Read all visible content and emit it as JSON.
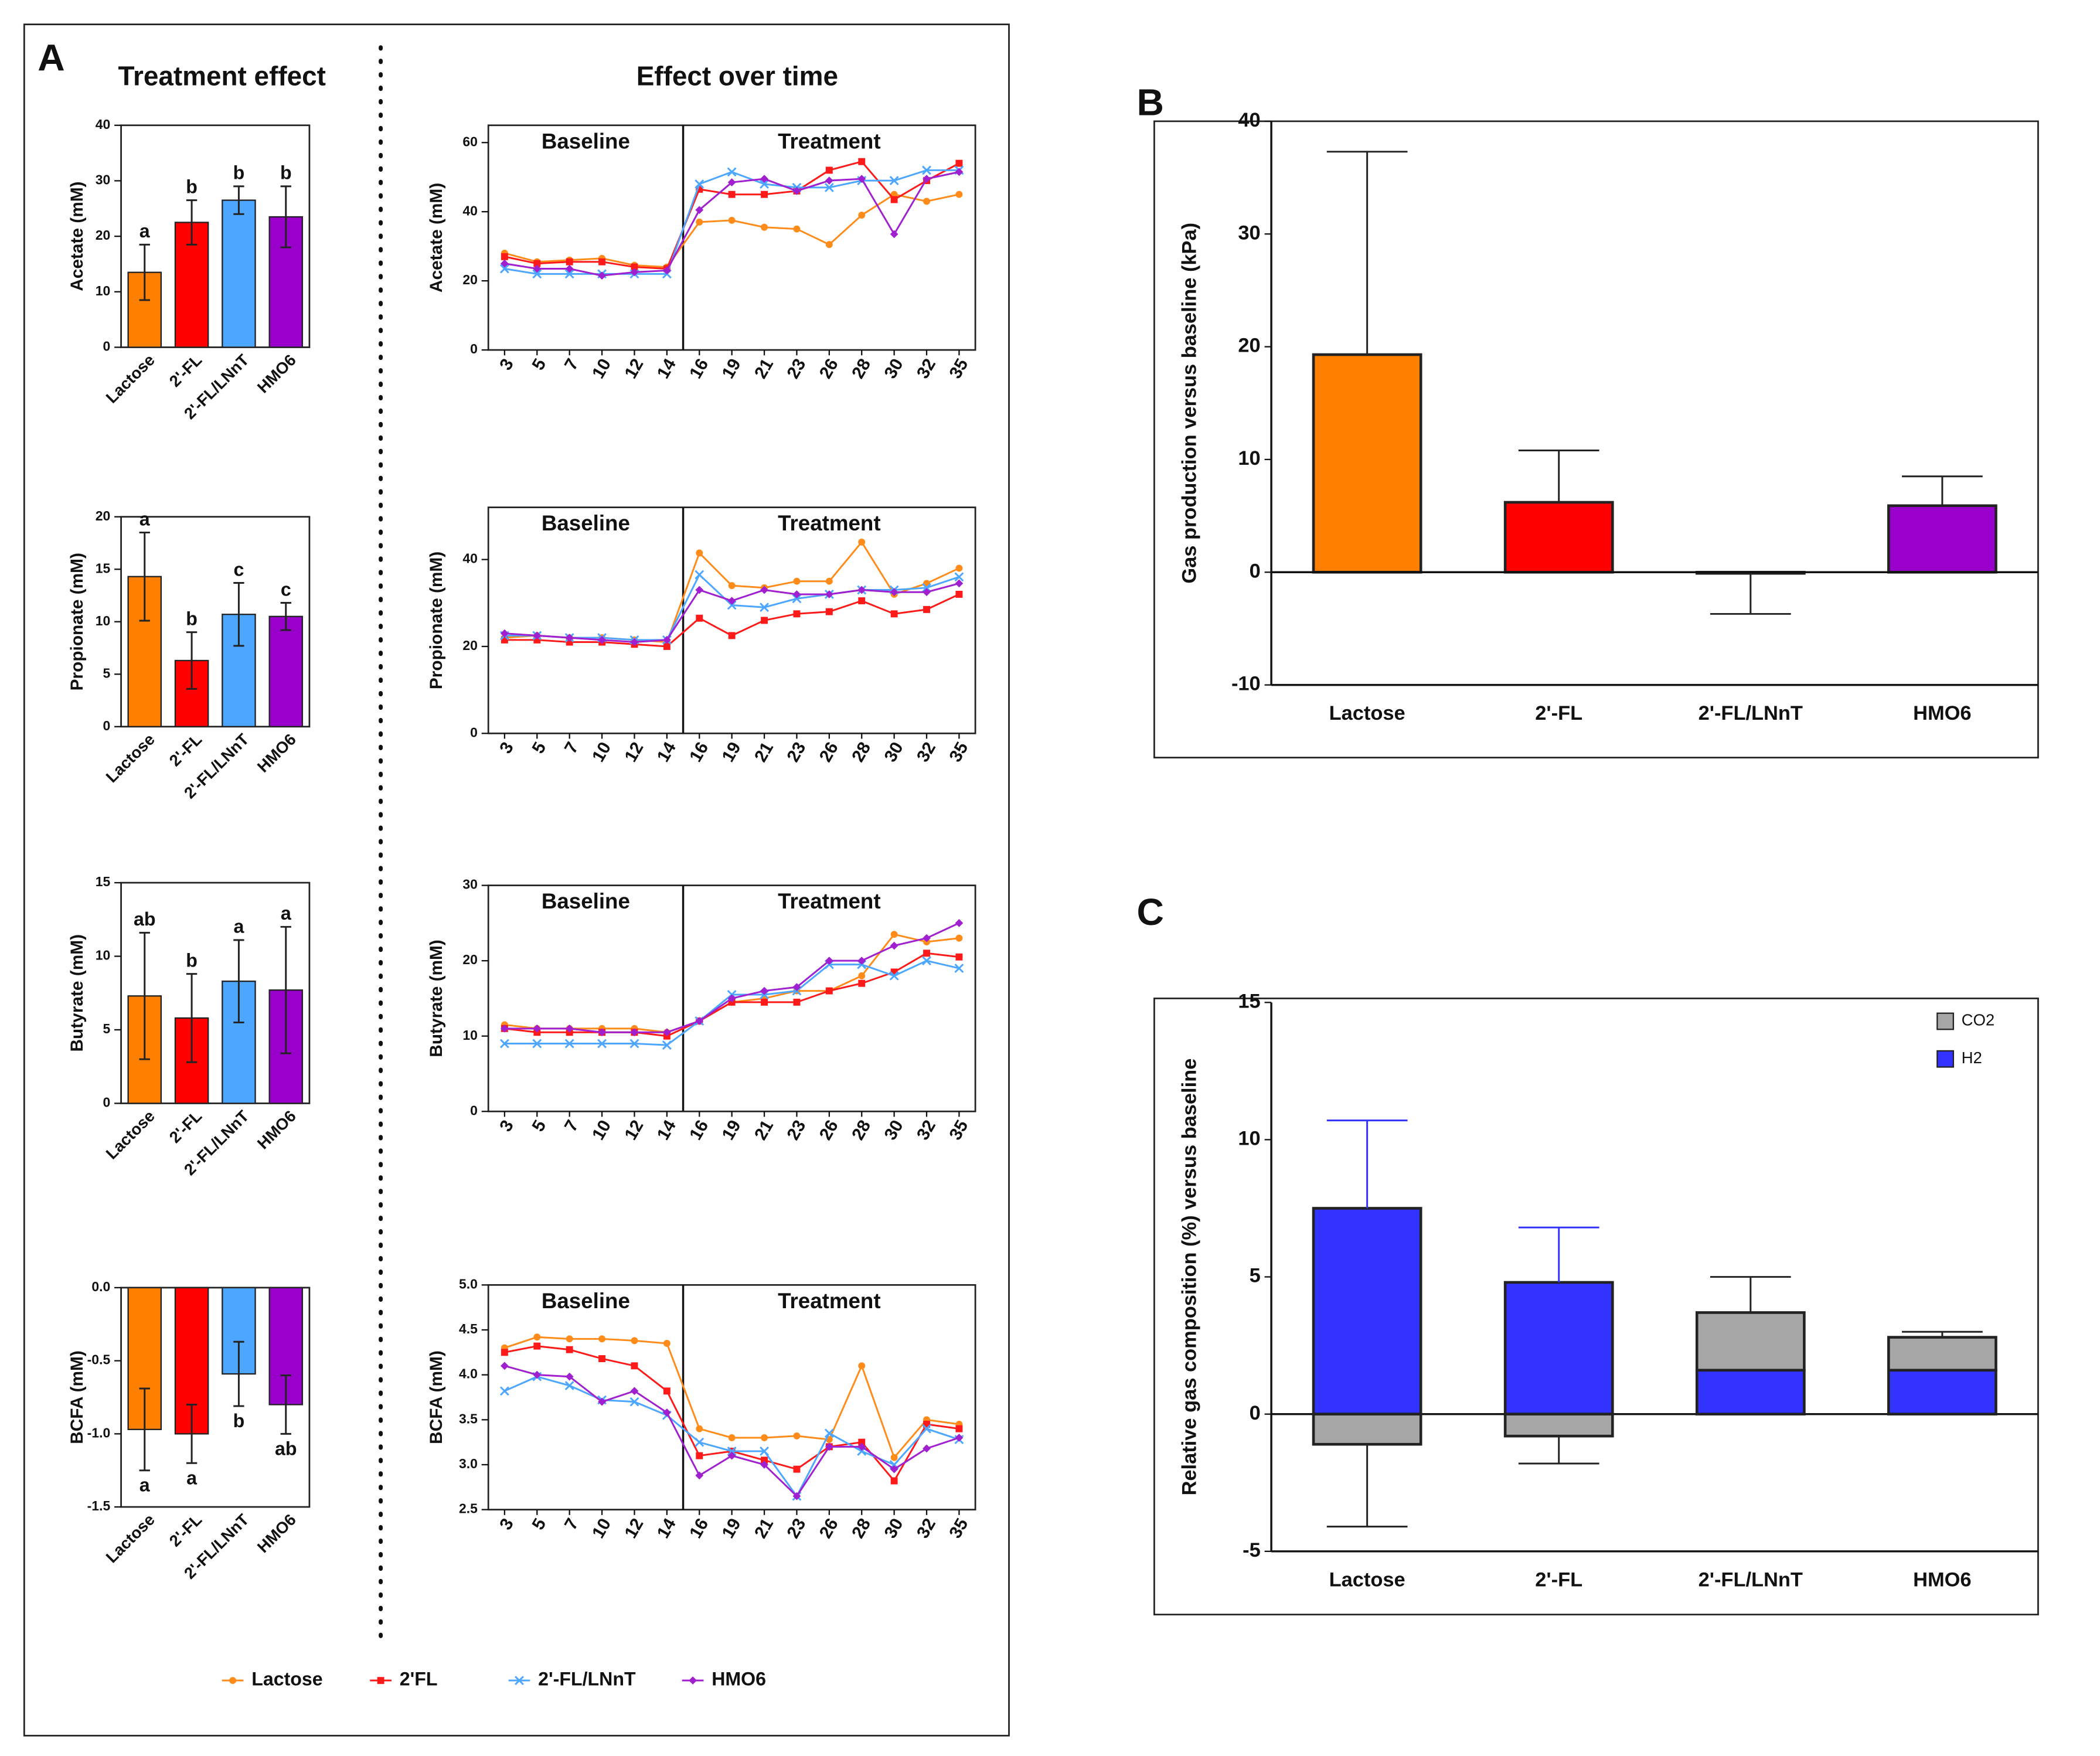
{
  "figure": {
    "panel_labels": [
      "A",
      "B",
      "C"
    ],
    "headings": [
      "Treatment effect",
      "Effect over time"
    ]
  },
  "chart_data": [
    {
      "type": "bar",
      "y_label": "Acetate (mM)",
      "categories": [
        "Lactose",
        "2'-FL",
        "2'-FL/LNnT",
        "HMO6"
      ],
      "values": [
        13.5,
        22.5,
        26.5,
        23.5
      ],
      "errors": [
        5,
        4,
        2.5,
        5.5
      ],
      "error_style": "both",
      "annotations": [
        "a",
        "b",
        "b",
        "b"
      ],
      "colors": [
        "#ff8000",
        "#ff0000",
        "#4da6ff",
        "#9900cc"
      ],
      "ylim": [
        0,
        40
      ],
      "yticks": [
        0,
        10,
        20,
        30,
        40
      ]
    },
    {
      "type": "bar",
      "y_label": "Propionate (mM)",
      "categories": [
        "Lactose",
        "2'-FL",
        "2'-FL/LNnT",
        "HMO6"
      ],
      "values": [
        14.3,
        6.3,
        10.7,
        10.5
      ],
      "errors": [
        4.2,
        2.7,
        3,
        1.3
      ],
      "error_style": "both",
      "annotations": [
        "a",
        "b",
        "c",
        "c"
      ],
      "colors": [
        "#ff8000",
        "#ff0000",
        "#4da6ff",
        "#9900cc"
      ],
      "ylim": [
        0,
        20
      ],
      "yticks": [
        0,
        5,
        10,
        15,
        20
      ]
    },
    {
      "type": "bar",
      "y_label": "Butyrate (mM)",
      "categories": [
        "Lactose",
        "2'-FL",
        "2'-FL/LNnT",
        "HMO6"
      ],
      "values": [
        7.3,
        5.8,
        8.3,
        7.7
      ],
      "errors": [
        4.3,
        3,
        2.8,
        4.3
      ],
      "error_style": "both",
      "annotations": [
        "ab",
        "b",
        "a",
        "a"
      ],
      "colors": [
        "#ff8000",
        "#ff0000",
        "#4da6ff",
        "#9900cc"
      ],
      "ylim": [
        0,
        15
      ],
      "yticks": [
        0,
        5,
        10,
        15
      ]
    },
    {
      "type": "bar",
      "y_label": "BCFA (mM)",
      "categories": [
        "Lactose",
        "2'-FL",
        "2'-FL/LNnT",
        "HMO6"
      ],
      "values": [
        -0.97,
        -1.0,
        -0.59,
        -0.8
      ],
      "errors": [
        0.28,
        0.2,
        0.22,
        0.2
      ],
      "error_style": "both",
      "annotations": [
        "a",
        "a",
        "b",
        "ab"
      ],
      "colors": [
        "#ff8000",
        "#ff0000",
        "#4da6ff",
        "#9900cc"
      ],
      "ylim": [
        -1.5,
        0
      ],
      "yticks": [
        -1.5,
        {
          "value": -1,
          "label": "-1.0"
        },
        -0.5,
        {
          "value": 0,
          "label": "0.0"
        }
      ]
    },
    {
      "type": "line",
      "y_label": "Acetate (mM)",
      "categories": [
        3,
        5,
        7,
        10,
        12,
        14,
        16,
        19,
        21,
        23,
        26,
        28,
        30,
        32,
        35
      ],
      "annotations": [
        "Baseline",
        "Treatment"
      ],
      "ylim": [
        0,
        65
      ],
      "yticks": [
        0,
        20,
        40,
        60
      ],
      "series": [
        {
          "name": "Lactose",
          "color": "#ff8c1a",
          "values": [
            28,
            25.5,
            26,
            26.5,
            24.5,
            24,
            37,
            37.5,
            35.5,
            35,
            30.5,
            39,
            45,
            43,
            45
          ]
        },
        {
          "name": "2'FL",
          "color": "#ff1a1a",
          "values": [
            27,
            25,
            25.5,
            25.5,
            24,
            23.5,
            46.5,
            45,
            45,
            46,
            52,
            54.5,
            43.5,
            49,
            54
          ]
        },
        {
          "name": "2'-FL/LNnT",
          "color": "#4da6ff",
          "values": [
            23.5,
            22,
            22,
            22,
            22,
            22,
            48,
            51.5,
            48,
            47,
            47,
            49,
            49,
            52,
            52
          ]
        },
        {
          "name": "HMO6",
          "color": "#a020d0",
          "values": [
            25,
            23.5,
            23.5,
            21.5,
            22.5,
            23,
            40.5,
            48.5,
            49.5,
            46,
            49,
            49.5,
            33.5,
            49.5,
            51.5
          ]
        }
      ]
    },
    {
      "type": "line",
      "y_label": "Propionate (mM)",
      "categories": [
        3,
        5,
        7,
        10,
        12,
        14,
        16,
        19,
        21,
        23,
        26,
        28,
        30,
        32,
        35
      ],
      "annotations": [
        "Baseline",
        "Treatment"
      ],
      "ylim": [
        0,
        52
      ],
      "yticks": [
        0,
        20,
        40
      ],
      "series": [
        {
          "name": "Lactose",
          "color": "#ff8c1a",
          "values": [
            22,
            22.5,
            22,
            22,
            21.5,
            21,
            41.5,
            34,
            33.5,
            35,
            35,
            44,
            32,
            34.5,
            38
          ]
        },
        {
          "name": "2'FL",
          "color": "#ff1a1a",
          "values": [
            21.5,
            21.5,
            21,
            21,
            20.5,
            20,
            26.5,
            22.5,
            26,
            27.5,
            28,
            30.5,
            27.5,
            28.5,
            32
          ]
        },
        {
          "name": "2'-FL/LNnT",
          "color": "#4da6ff",
          "values": [
            22.5,
            22.5,
            22,
            22,
            21.5,
            21.5,
            36.5,
            29.5,
            29,
            31,
            32,
            33,
            33,
            33.5,
            36
          ]
        },
        {
          "name": "HMO6",
          "color": "#a020d0",
          "values": [
            23,
            22.5,
            22,
            21.5,
            21,
            21.5,
            33,
            30.5,
            33,
            32,
            32,
            33,
            32.5,
            32.5,
            34.5
          ]
        }
      ]
    },
    {
      "type": "line",
      "y_label": "Butyrate (mM)",
      "categories": [
        3,
        5,
        7,
        10,
        12,
        14,
        16,
        19,
        21,
        23,
        26,
        28,
        30,
        32,
        35
      ],
      "annotations": [
        "Baseline",
        "Treatment"
      ],
      "ylim": [
        0,
        30
      ],
      "yticks": [
        0,
        10,
        20,
        30
      ],
      "series": [
        {
          "name": "Lactose",
          "color": "#ff8c1a",
          "values": [
            11.5,
            11,
            11,
            11,
            11,
            10.5,
            12,
            14.5,
            15,
            16,
            16,
            18,
            23.5,
            22.5,
            23
          ]
        },
        {
          "name": "2'FL",
          "color": "#ff1a1a",
          "values": [
            11,
            10.5,
            10.5,
            10.5,
            10.5,
            10,
            12,
            14.5,
            14.5,
            14.5,
            16,
            17,
            18.5,
            21,
            20.5
          ]
        },
        {
          "name": "2'-FL/LNnT",
          "color": "#4da6ff",
          "values": [
            9,
            9,
            9,
            9,
            9,
            8.8,
            12,
            15.5,
            15.5,
            16,
            19.5,
            19.5,
            18,
            20,
            19
          ]
        },
        {
          "name": "HMO6",
          "color": "#a020d0",
          "values": [
            11,
            11,
            11,
            10.5,
            10.5,
            10.5,
            12,
            15,
            16,
            16.5,
            20,
            20,
            22,
            23,
            25
          ]
        }
      ]
    },
    {
      "type": "line",
      "y_label": "BCFA (mM)",
      "categories": [
        3,
        5,
        7,
        10,
        12,
        14,
        16,
        19,
        21,
        23,
        26,
        28,
        30,
        32,
        35
      ],
      "annotations": [
        "Baseline",
        "Treatment"
      ],
      "ylim": [
        2.5,
        5
      ],
      "yticks": [
        2.5,
        {
          "value": 3,
          "label": "3.0"
        },
        3.5,
        {
          "value": 4,
          "label": "4.0"
        },
        4.5,
        {
          "value": 5,
          "label": "5.0"
        }
      ],
      "series": [
        {
          "name": "Lactose",
          "color": "#ff8c1a",
          "values": [
            4.3,
            4.42,
            4.4,
            4.4,
            4.38,
            4.35,
            3.4,
            3.3,
            3.3,
            3.32,
            3.28,
            4.1,
            3.08,
            3.5,
            3.45
          ]
        },
        {
          "name": "2'FL",
          "color": "#ff1a1a",
          "values": [
            4.25,
            4.32,
            4.28,
            4.18,
            4.1,
            3.82,
            3.1,
            3.15,
            3.05,
            2.95,
            3.2,
            3.25,
            2.82,
            3.45,
            3.4
          ]
        },
        {
          "name": "2'-FL/LNnT",
          "color": "#4da6ff",
          "values": [
            3.82,
            3.98,
            3.88,
            3.72,
            3.7,
            3.55,
            3.25,
            3.15,
            3.15,
            2.65,
            3.35,
            3.15,
            3.0,
            3.4,
            3.28
          ]
        },
        {
          "name": "HMO6",
          "color": "#a020d0",
          "values": [
            4.1,
            4.0,
            3.98,
            3.7,
            3.82,
            3.58,
            2.88,
            3.1,
            3.0,
            2.65,
            3.2,
            3.2,
            2.95,
            3.18,
            3.3
          ]
        }
      ]
    },
    {
      "type": "bar",
      "y_label": "Gas production versus baseline (kPa)",
      "categories": [
        "Lactose",
        "2'-FL",
        "2'-FL/LNnT",
        "HMO6"
      ],
      "values": [
        19.3,
        6.2,
        -0.1,
        5.9
      ],
      "errors": [
        18,
        4.6,
        3.6,
        2.6
      ],
      "error_style": "outward",
      "colors": [
        "#ff8000",
        "#ff0000",
        "#4da6ff",
        "#9900cc"
      ],
      "ylim": [
        -10,
        40
      ],
      "yticks": [
        -10,
        0,
        10,
        20,
        30,
        40
      ]
    },
    {
      "type": "stacked_bar",
      "y_label": "Relative gas composition (%) versus baseline",
      "categories": [
        "Lactose",
        "2'-FL",
        "2'-FL/LNnT",
        "HMO6"
      ],
      "ylim": [
        -5,
        15
      ],
      "yticks": [
        -5,
        0,
        5,
        10,
        15
      ],
      "series": [
        {
          "name": "CO2",
          "color": "#a6a6a6",
          "error_color": "#222222",
          "values": [
            -1.1,
            -0.8,
            2.1,
            1.2
          ],
          "errors": [
            3.0,
            1.0,
            1.3,
            0.2
          ]
        },
        {
          "name": "H2",
          "color": "#3333ff",
          "error_color": "#3333ff",
          "values": [
            7.5,
            4.8,
            1.6,
            1.6
          ],
          "errors": [
            3.2,
            2.0,
            0.4,
            0.6
          ]
        }
      ]
    }
  ]
}
